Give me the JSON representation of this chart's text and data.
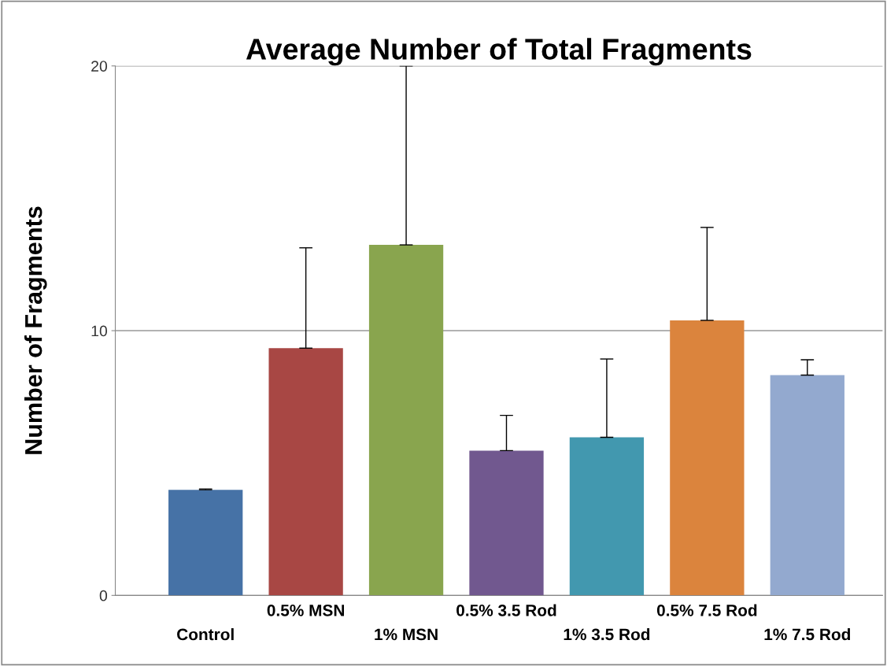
{
  "chart_data": {
    "type": "bar",
    "title": "Average Number of Total Fragments",
    "ylabel": "Number of Fragments",
    "categories": [
      "Control",
      "0.5% MSN",
      "1% MSN",
      "0.5% 3.5 Rod",
      "1% 3.5 Rod",
      "0.5% 7.5 Rod",
      "1% 7.5 Rod"
    ],
    "values": [
      3.99,
      9.34,
      13.24,
      5.47,
      5.97,
      10.39,
      8.32
    ],
    "colors": [
      "#4672a6",
      "#a84744",
      "#89a54e",
      "#71588f",
      "#4298af",
      "#db843d",
      "#93a9cf"
    ],
    "errors": [
      [
        3.99,
        4.02
      ],
      [
        9.34,
        13.13
      ],
      [
        13.24,
        20.0
      ],
      [
        5.47,
        6.8
      ],
      [
        5.97,
        8.93
      ],
      [
        10.39,
        13.9
      ],
      [
        8.32,
        8.9
      ]
    ],
    "ylim": [
      0,
      20
    ],
    "yticks": [
      0,
      10,
      20
    ],
    "grid": "y"
  }
}
